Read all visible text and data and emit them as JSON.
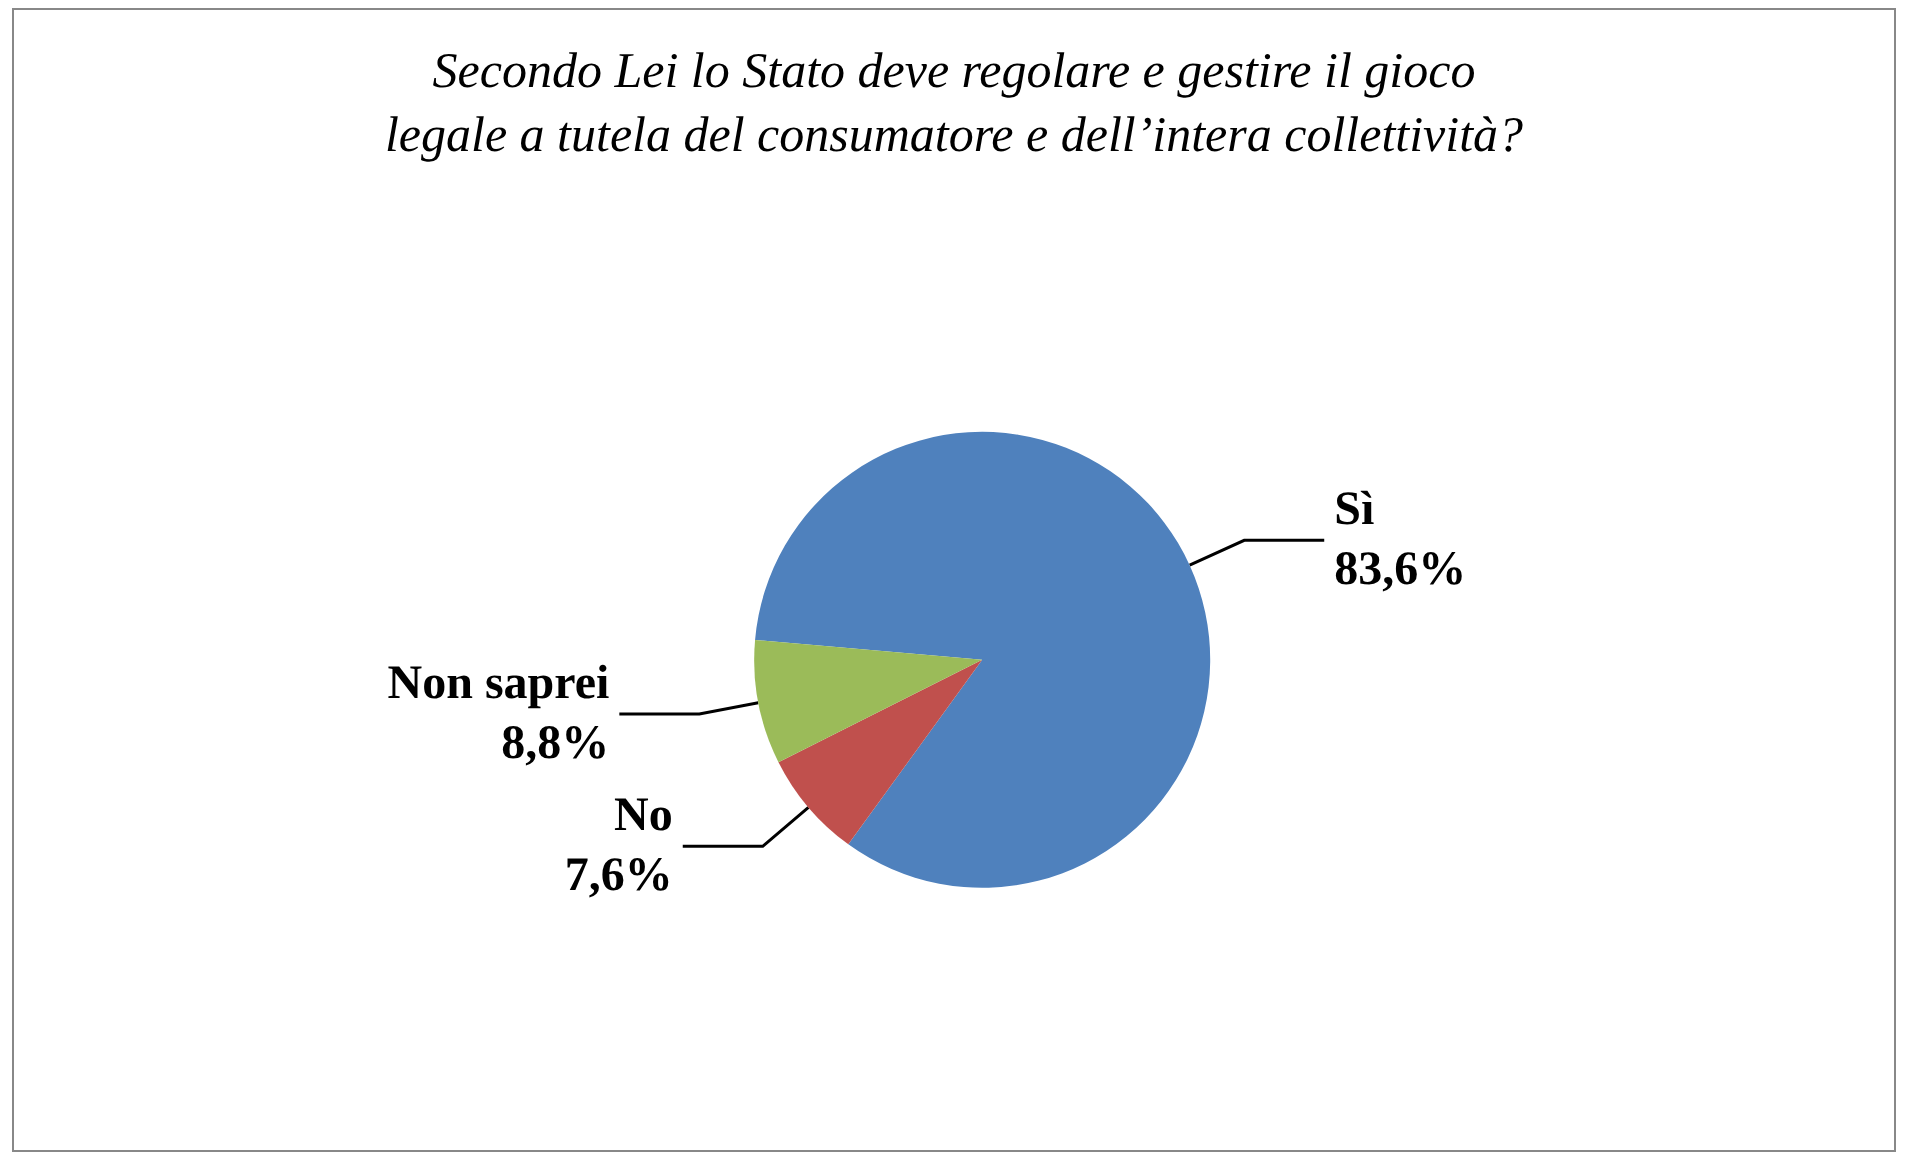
{
  "chart_data": {
    "type": "pie",
    "title": "Secondo Lei lo Stato deve regolare e gestire il gioco\nlegale a tutela del consumatore e dell’intera collettività?",
    "categories": [
      "Sì",
      "No",
      "Non saprei"
    ],
    "values": [
      83.6,
      7.6,
      8.8
    ],
    "value_labels": [
      "83,6%",
      "7,6%",
      "8,8%"
    ],
    "colors": [
      "#4f81bd",
      "#c0504d",
      "#9bbb59"
    ],
    "legend": false
  }
}
